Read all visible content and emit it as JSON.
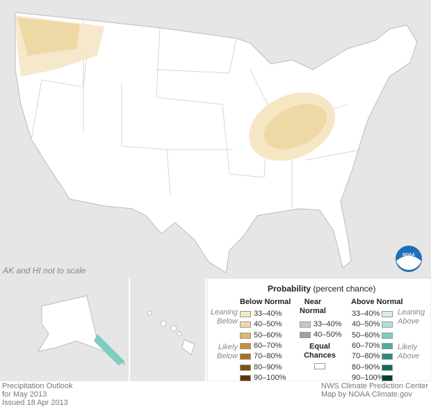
{
  "logo": "NOAA",
  "map_note": "AK and HI not to scale",
  "legend": {
    "title": "Probability",
    "subtitle": "(percent chance)",
    "below": {
      "heading": "Below Normal",
      "leaning": "Leaning Below",
      "likely": "Likely Below",
      "items": [
        {
          "label": "33–40%",
          "color": "#f6e8c6"
        },
        {
          "label": "40–50%",
          "color": "#eed9a6"
        },
        {
          "label": "50–60%",
          "color": "#dcb96e"
        },
        {
          "label": "60–70%",
          "color": "#c9902f"
        },
        {
          "label": "70–80%",
          "color": "#a8701e"
        },
        {
          "label": "80–90%",
          "color": "#7d4f12"
        },
        {
          "label": "90–100%",
          "color": "#5a3508"
        }
      ]
    },
    "near": {
      "heading": "Near Normal",
      "items": [
        {
          "label": "33–40%",
          "color": "#c8c8c8"
        },
        {
          "label": "40–50%",
          "color": "#a0a0a0"
        }
      ]
    },
    "equal": {
      "heading": "Equal Chances",
      "color": "#ffffff"
    },
    "above": {
      "heading": "Above Normal",
      "leaning": "Leaning Above",
      "likely": "Likely Above",
      "items": [
        {
          "label": "33–40%",
          "color": "#d6efec"
        },
        {
          "label": "40–50%",
          "color": "#b2e0d9"
        },
        {
          "label": "50–60%",
          "color": "#7fccc0"
        },
        {
          "label": "60–70%",
          "color": "#4bae9f"
        },
        {
          "label": "70–80%",
          "color": "#2a8c7c"
        },
        {
          "label": "80–90%",
          "color": "#12685a"
        },
        {
          "label": "90–100%",
          "color": "#063e34"
        }
      ]
    }
  },
  "footer": {
    "left": [
      "Precipitation Outlook",
      "for May 2013",
      "Issued 18 Apr 2013"
    ],
    "right": [
      "NWS Climate Prediction Center",
      "Map by NOAA Climate.gov"
    ]
  }
}
